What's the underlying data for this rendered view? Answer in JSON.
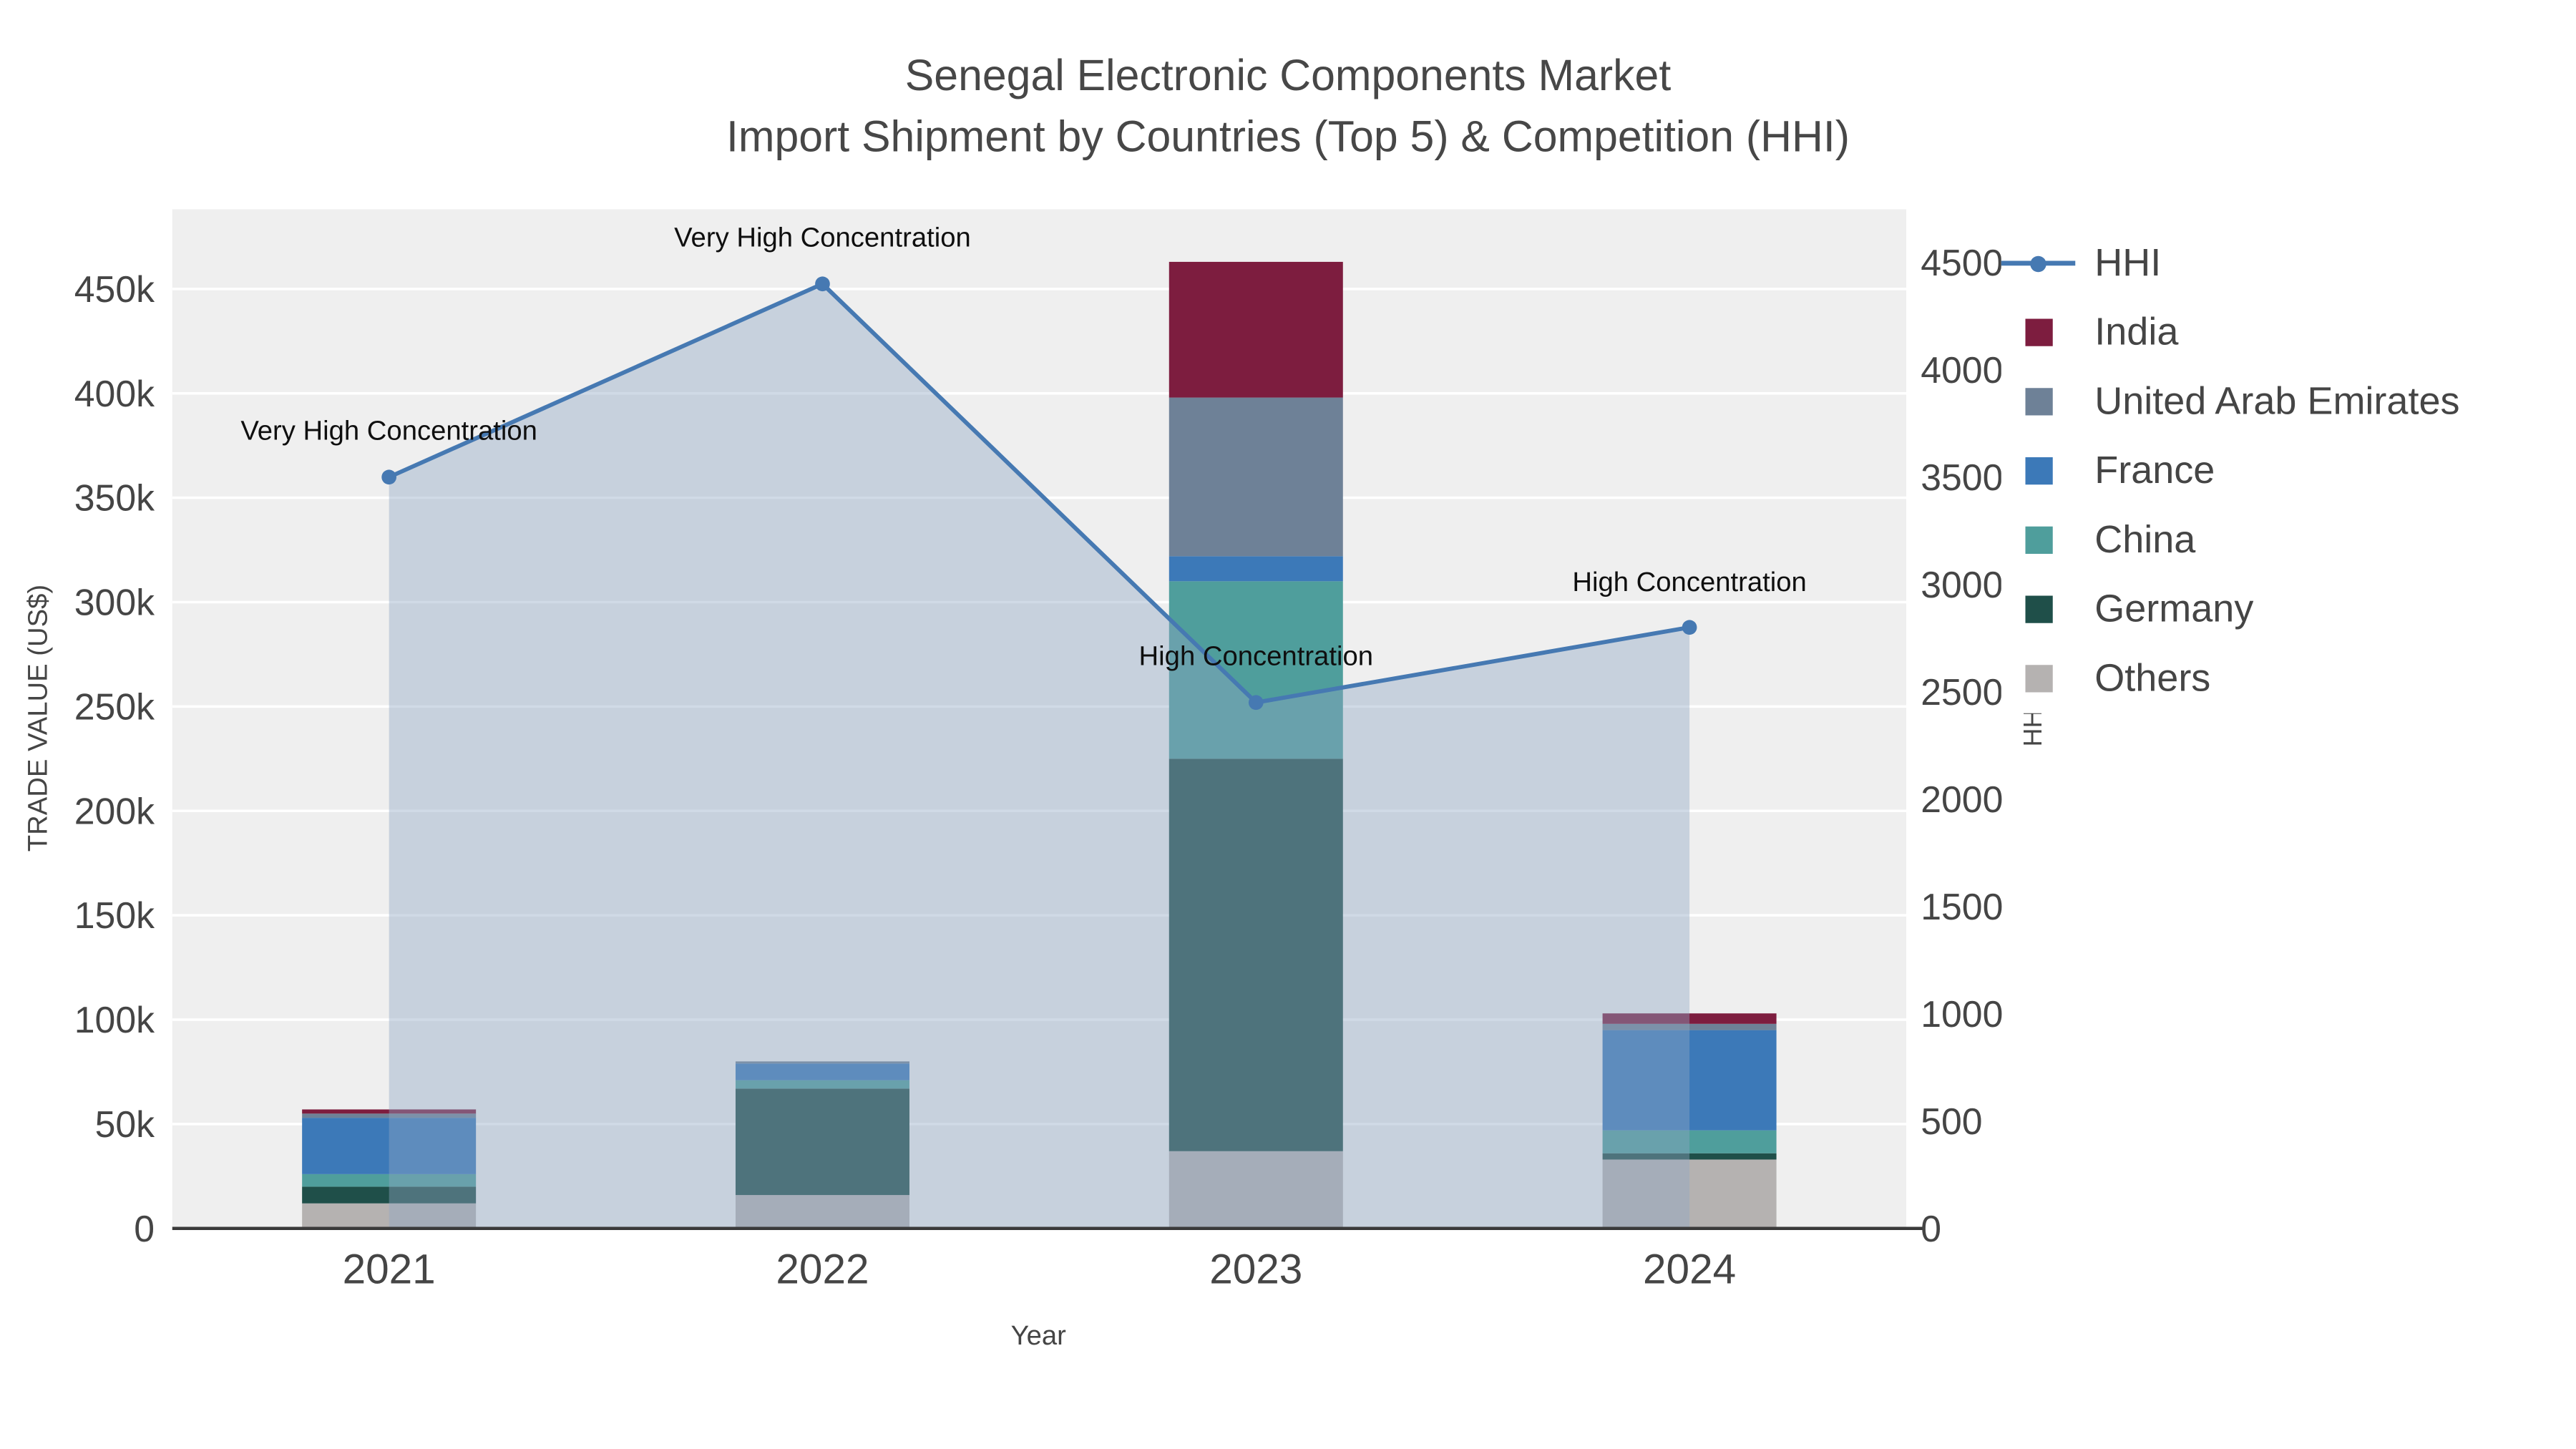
{
  "title": {
    "line1": "Senegal Electronic Components Market",
    "line2": "Import Shipment by Countries (Top 5) & Competition (HHI)"
  },
  "axes": {
    "x_title": "Year",
    "y_left_title": "TRADE VALUE (US$)",
    "y_right_title": "HHI",
    "x_tick_labels": [
      "2021",
      "2022",
      "2023",
      "2024"
    ],
    "y_left_tick_labels": [
      "0",
      "50k",
      "100k",
      "150k",
      "200k",
      "250k",
      "300k",
      "350k",
      "400k",
      "450k"
    ],
    "y_right_tick_labels": [
      "0",
      "500",
      "1000",
      "1500",
      "2000",
      "2500",
      "3000",
      "3500",
      "4000",
      "4500"
    ]
  },
  "legend": {
    "items": [
      {
        "label": "HHI",
        "swatch": "line",
        "color": "#4679b2"
      },
      {
        "label": "India",
        "swatch": "square",
        "color": "#7d1d3f"
      },
      {
        "label": "United Arab Emirates",
        "swatch": "square",
        "color": "#6e8197"
      },
      {
        "label": "France",
        "swatch": "square",
        "color": "#3c79b8"
      },
      {
        "label": "China",
        "swatch": "square",
        "color": "#4f9e9c"
      },
      {
        "label": "Germany",
        "swatch": "square",
        "color": "#1f4f49"
      },
      {
        "label": "Others",
        "swatch": "square",
        "color": "#b5b2b1"
      }
    ]
  },
  "chart_data": {
    "type": "bar",
    "subtype": "stacked-bars-with-hhi-line",
    "x": [
      "2021",
      "2022",
      "2023",
      "2024"
    ],
    "bar_unit": "US$",
    "bar_stack_order_bottom_to_top": [
      "Others",
      "Germany",
      "China",
      "France",
      "United Arab Emirates",
      "India"
    ],
    "bar_series": [
      {
        "name": "Others",
        "color": "#b5b2b1",
        "values": [
          12000,
          16000,
          37000,
          33000
        ]
      },
      {
        "name": "Germany",
        "color": "#1f4f49",
        "values": [
          8000,
          51000,
          188000,
          3000
        ]
      },
      {
        "name": "China",
        "color": "#4f9e9c",
        "values": [
          6000,
          4000,
          85000,
          11000
        ]
      },
      {
        "name": "France",
        "color": "#3c79b8",
        "values": [
          27000,
          8000,
          12000,
          48000
        ]
      },
      {
        "name": "United Arab Emirates",
        "color": "#6e8197",
        "values": [
          2000,
          1000,
          76000,
          3000
        ]
      },
      {
        "name": "India",
        "color": "#7d1d3f",
        "values": [
          2000,
          0,
          65000,
          5000
        ]
      }
    ],
    "line_series": {
      "name": "HHI",
      "axis": "right",
      "color": "#4679b2",
      "values": [
        3500,
        4400,
        2450,
        2800
      ],
      "fill": "tozero",
      "fill_color": "#8ea6c3",
      "fill_opacity": 0.42
    },
    "annotations": [
      {
        "x": "2021",
        "text": "Very High Concentration"
      },
      {
        "x": "2022",
        "text": "Very High Concentration"
      },
      {
        "x": "2023",
        "text": "High Concentration"
      },
      {
        "x": "2024",
        "text": "High Concentration"
      }
    ],
    "y_left_range": [
      0,
      450000
    ],
    "y_right_range": [
      0,
      4500
    ],
    "grid": true,
    "legend_position": "right",
    "plot_background": "#efefef"
  }
}
